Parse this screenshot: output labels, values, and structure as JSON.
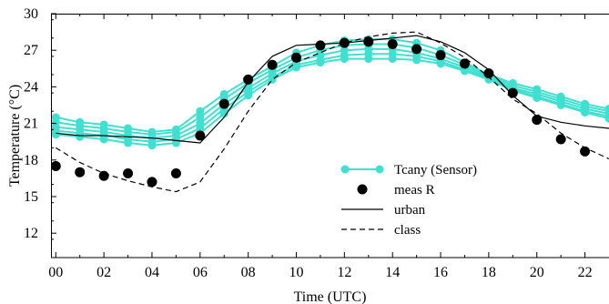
{
  "chart_data": {
    "type": "line",
    "title": "",
    "xlabel": "Time (UTC)",
    "ylabel": "Temperature (°C)",
    "xlim": [
      -0.2,
      23
    ],
    "ylim": [
      10,
      30
    ],
    "x_ticks": [
      0,
      2,
      4,
      6,
      8,
      10,
      12,
      14,
      16,
      18,
      20,
      22
    ],
    "x_tick_labels": [
      "00",
      "02",
      "04",
      "06",
      "08",
      "10",
      "12",
      "14",
      "16",
      "18",
      "20",
      "22"
    ],
    "y_ticks": [
      12,
      15,
      18,
      21,
      24,
      27,
      30
    ],
    "y_tick_labels": [
      "12",
      "15",
      "18",
      "21",
      "24",
      "27",
      "30"
    ],
    "grid": false,
    "legend_position": "center-right",
    "colors": {
      "tcany": "#40e0d0",
      "black": "#000000"
    },
    "series": [
      {
        "name": "Tcany (Sensor)",
        "style": "line-with-circles",
        "x": [
          0,
          1,
          2,
          3,
          4,
          5,
          6,
          7,
          8,
          9,
          10,
          11,
          12,
          13,
          14,
          15,
          16,
          17,
          18,
          19,
          20,
          21,
          22,
          23
        ],
        "members": [
          [
            21.5,
            21.1,
            20.9,
            20.6,
            20.3,
            20.5,
            22.0,
            23.4,
            24.6,
            25.7,
            26.8,
            27.4,
            27.8,
            27.9,
            27.9,
            27.6,
            27.0,
            26.0,
            25.0,
            24.3,
            23.8,
            23.2,
            22.6,
            22.2
          ],
          [
            21.1,
            20.8,
            20.6,
            20.3,
            20.1,
            20.3,
            21.5,
            23.0,
            24.3,
            25.4,
            26.4,
            27.0,
            27.4,
            27.5,
            27.5,
            27.2,
            26.6,
            25.8,
            24.9,
            24.1,
            23.6,
            23.0,
            22.4,
            22.0
          ],
          [
            20.7,
            20.5,
            20.3,
            20.0,
            19.8,
            20.0,
            21.0,
            22.6,
            23.9,
            25.1,
            26.1,
            26.6,
            27.0,
            27.1,
            27.1,
            26.8,
            26.3,
            25.6,
            24.8,
            23.9,
            23.4,
            22.8,
            22.2,
            21.8
          ],
          [
            20.4,
            20.2,
            20.0,
            19.7,
            19.5,
            19.7,
            20.6,
            22.2,
            23.6,
            24.8,
            25.8,
            26.2,
            26.6,
            26.7,
            26.7,
            26.5,
            26.1,
            25.4,
            24.7,
            23.8,
            23.2,
            22.6,
            22.0,
            21.6
          ],
          [
            20.1,
            19.9,
            19.7,
            19.4,
            19.2,
            19.4,
            20.2,
            21.8,
            23.3,
            24.6,
            25.6,
            26.0,
            26.3,
            26.3,
            26.3,
            26.2,
            25.9,
            25.3,
            24.6,
            23.7,
            23.1,
            22.5,
            21.9,
            21.4
          ]
        ]
      },
      {
        "name": "meas R",
        "style": "markers",
        "x": [
          0,
          1,
          2,
          3,
          4,
          5,
          6,
          7,
          8,
          9,
          10,
          11,
          12,
          13,
          14,
          15,
          16,
          17,
          18,
          19,
          20,
          21,
          22
        ],
        "y": [
          17.5,
          17.0,
          16.7,
          16.9,
          16.2,
          16.9,
          20.0,
          22.6,
          24.6,
          25.8,
          26.4,
          27.4,
          27.6,
          27.7,
          27.5,
          27.1,
          26.6,
          25.9,
          25.1,
          23.5,
          21.3,
          19.7,
          18.7
        ]
      },
      {
        "name": "urban",
        "style": "solid",
        "x": [
          0,
          1,
          2,
          3,
          4,
          5,
          6,
          7,
          8,
          9,
          10,
          11,
          12,
          13,
          14,
          15,
          16,
          17,
          18,
          19,
          20,
          21,
          22,
          23
        ],
        "y": [
          20.2,
          20.0,
          20.0,
          19.9,
          19.8,
          19.6,
          19.4,
          21.5,
          24.4,
          26.5,
          27.4,
          27.5,
          27.6,
          27.8,
          28.0,
          28.2,
          27.7,
          26.8,
          25.4,
          23.3,
          21.6,
          21.1,
          20.8,
          20.6
        ]
      },
      {
        "name": "class",
        "style": "dashed",
        "x": [
          0,
          1,
          2,
          3,
          4,
          5,
          6,
          7,
          8,
          9,
          10,
          11,
          12,
          13,
          14,
          15,
          16,
          17,
          18,
          19,
          20,
          21,
          22,
          23
        ],
        "y": [
          19.0,
          17.8,
          16.9,
          16.3,
          15.8,
          15.4,
          16.2,
          18.9,
          22.0,
          24.6,
          26.0,
          26.8,
          27.6,
          28.1,
          28.4,
          28.5,
          27.6,
          26.4,
          24.8,
          23.0,
          21.8,
          20.2,
          19.0,
          18.1
        ]
      }
    ]
  }
}
